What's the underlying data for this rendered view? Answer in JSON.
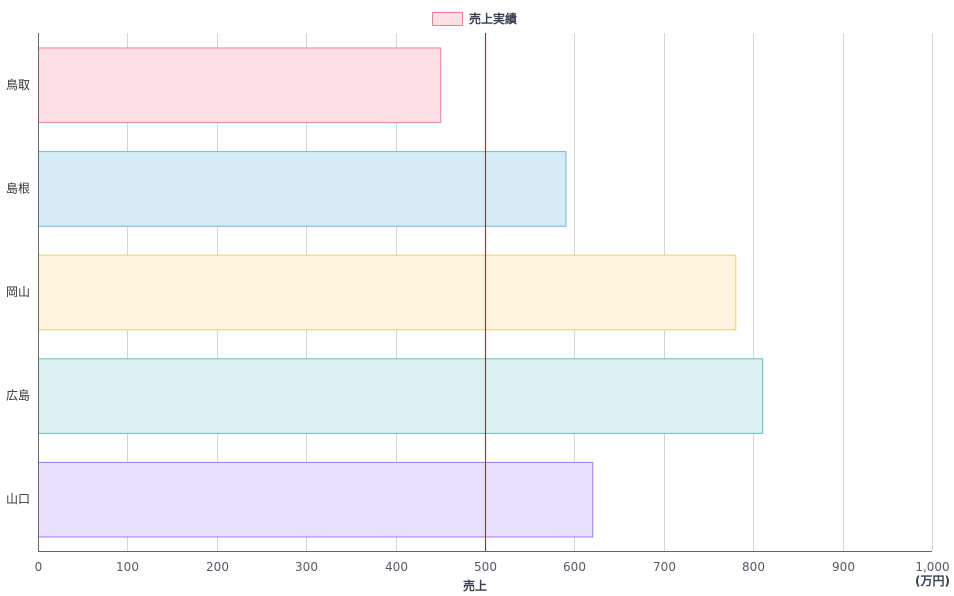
{
  "chart_data": {
    "type": "bar",
    "orientation": "horizontal",
    "categories": [
      "鳥取",
      "島根",
      "岡山",
      "広島",
      "山口"
    ],
    "series": [
      {
        "name": "売上実績",
        "values": [
          450,
          590,
          780,
          810,
          620
        ]
      }
    ],
    "bar_colors": [
      {
        "fill": "#ffdfe6",
        "stroke": "#e8809a"
      },
      {
        "fill": "#d6ebf8",
        "stroke": "#6fb8d8"
      },
      {
        "fill": "#fff4dc",
        "stroke": "#f2cf6a"
      },
      {
        "fill": "#d9f1f1",
        "stroke": "#66bdbd"
      },
      {
        "fill": "#e9e0ff",
        "stroke": "#a279e6"
      }
    ],
    "legend_swatch": {
      "fill": "#ffdfe6",
      "stroke": "#e8809a"
    },
    "xlabel": "売上",
    "x_unit": "(万円)",
    "xlim": [
      0,
      1000
    ],
    "x_ticks": [
      0,
      100,
      200,
      300,
      400,
      500,
      600,
      700,
      800,
      900,
      1000
    ],
    "x_tick_labels": [
      "0",
      "100",
      "200",
      "300",
      "400",
      "500",
      "600",
      "700",
      "800",
      "900",
      "1,000"
    ],
    "reference_line": {
      "value": 500,
      "color": "#c0263f"
    },
    "grid": true,
    "grid_color": "#d4d4d4",
    "axis_color": "#666666",
    "legend_position": "top-center"
  }
}
